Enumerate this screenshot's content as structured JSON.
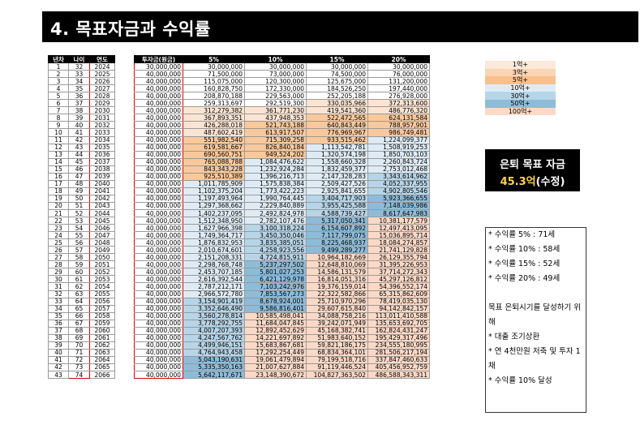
{
  "title": "4. 목표자금과 수익률",
  "headers": {
    "year_n": "년차",
    "age": "나이",
    "year": "연도",
    "invest": "투자금(원금)",
    "r5": "5%",
    "r10": "10%",
    "r15": "15%",
    "r20": "20%"
  },
  "rows": [
    {
      "n": "1",
      "age": "32",
      "year": "2024",
      "inv": "30,000,000",
      "v5": "30,000,000",
      "v10": "30,000,000",
      "v15": "30,000,000",
      "v20": "30,000,000"
    },
    {
      "n": "2",
      "age": "33",
      "year": "2025",
      "inv": "40,000,000",
      "v5": "71,500,000",
      "v10": "73,000,000",
      "v15": "74,500,000",
      "v20": "76,000,000"
    },
    {
      "n": "3",
      "age": "34",
      "year": "2026",
      "inv": "40,000,000",
      "v5": "115,075,000",
      "v10": "120,300,000",
      "v15": "125,675,000",
      "v20": "131,200,000"
    },
    {
      "n": "4",
      "age": "35",
      "year": "2027",
      "inv": "40,000,000",
      "v5": "160,828,750",
      "v10": "172,330,000",
      "v15": "184,526,250",
      "v20": "197,440,000"
    },
    {
      "n": "5",
      "age": "36",
      "year": "2028",
      "inv": "40,000,000",
      "v5": "208,870,188",
      "v10": "229,563,000",
      "v15": "252,205,188",
      "v20": "276,928,000"
    },
    {
      "n": "6",
      "age": "37",
      "year": "2029",
      "inv": "40,000,000",
      "v5": "259,313,697",
      "v10": "292,519,300",
      "v15": "330,035,966",
      "v20": "372,313,600"
    },
    {
      "n": "7",
      "age": "38",
      "year": "2030",
      "inv": "40,000,000",
      "v5": "312,279,382",
      "v10": "361,771,230",
      "v15": "419,541,360",
      "v20": "486,776,320"
    },
    {
      "n": "8",
      "age": "39",
      "year": "2031",
      "inv": "40,000,000",
      "v5": "367,893,351",
      "v10": "437,948,353",
      "v15": "522,472,565",
      "v20": "624,131,584"
    },
    {
      "n": "9",
      "age": "40",
      "year": "2032",
      "inv": "40,000,000",
      "v5": "426,288,018",
      "v10": "521,743,188",
      "v15": "640,843,449",
      "v20": "788,957,901"
    },
    {
      "n": "10",
      "age": "41",
      "year": "2033",
      "inv": "40,000,000",
      "v5": "487,602,419",
      "v10": "613,917,507",
      "v15": "776,969,967",
      "v20": "986,749,481"
    },
    {
      "n": "11",
      "age": "42",
      "year": "2034",
      "inv": "40,000,000",
      "v5": "551,982,540",
      "v10": "715,309,258",
      "v15": "933,515,462",
      "v20": "1,224,099,377"
    },
    {
      "n": "12",
      "age": "43",
      "year": "2035",
      "inv": "40,000,000",
      "v5": "619,581,667",
      "v10": "826,840,184",
      "v15": "1,113,542,781",
      "v20": "1,508,919,253"
    },
    {
      "n": "13",
      "age": "44",
      "year": "2036",
      "inv": "40,000,000",
      "v5": "690,560,751",
      "v10": "949,524,202",
      "v15": "1,320,574,198",
      "v20": "1,850,703,103"
    },
    {
      "n": "14",
      "age": "45",
      "year": "2037",
      "inv": "40,000,000",
      "v5": "765,088,788",
      "v10": "1,084,476,622",
      "v15": "1,558,660,328",
      "v20": "2,260,843,724"
    },
    {
      "n": "15",
      "age": "46",
      "year": "2038",
      "inv": "40,000,000",
      "v5": "843,343,228",
      "v10": "1,232,924,284",
      "v15": "1,832,459,377",
      "v20": "2,753,012,468"
    },
    {
      "n": "16",
      "age": "47",
      "year": "2039",
      "inv": "40,000,000",
      "v5": "925,510,389",
      "v10": "1,396,216,713",
      "v15": "2,147,328,283",
      "v20": "3,343,614,962"
    },
    {
      "n": "17",
      "age": "48",
      "year": "2040",
      "inv": "40,000,000",
      "v5": "1,011,785,909",
      "v10": "1,575,838,384",
      "v15": "2,509,427,526",
      "v20": "4,052,337,955"
    },
    {
      "n": "18",
      "age": "49",
      "year": "2041",
      "inv": "40,000,000",
      "v5": "1,102,375,204",
      "v10": "1,773,422,223",
      "v15": "2,925,841,655",
      "v20": "4,902,805,546"
    },
    {
      "n": "19",
      "age": "50",
      "year": "2042",
      "inv": "40,000,000",
      "v5": "1,197,493,964",
      "v10": "1,990,764,445",
      "v15": "3,404,717,903",
      "v20": "5,923,366,655"
    },
    {
      "n": "20",
      "age": "51",
      "year": "2043",
      "inv": "40,000,000",
      "v5": "1,297,368,662",
      "v10": "2,229,840,889",
      "v15": "3,955,425,588",
      "v20": "7,148,039,986"
    },
    {
      "n": "21",
      "age": "52",
      "year": "2044",
      "inv": "40,000,000",
      "v5": "1,402,237,095",
      "v10": "2,492,824,978",
      "v15": "4,588,739,427",
      "v20": "8,617,647,983"
    },
    {
      "n": "22",
      "age": "53",
      "year": "2045",
      "inv": "40,000,000",
      "v5": "1,512,348,950",
      "v10": "2,782,107,476",
      "v15": "5,317,050,341",
      "v20": "10,381,177,579"
    },
    {
      "n": "23",
      "age": "54",
      "year": "2046",
      "inv": "40,000,000",
      "v5": "1,627,966,398",
      "v10": "3,100,318,224",
      "v15": "6,154,607,892",
      "v20": "12,497,413,095"
    },
    {
      "n": "24",
      "age": "55",
      "year": "2047",
      "inv": "40,000,000",
      "v5": "1,749,364,717",
      "v10": "3,450,350,046",
      "v15": "7,117,799,075",
      "v20": "15,036,895,714"
    },
    {
      "n": "25",
      "age": "56",
      "year": "2048",
      "inv": "40,000,000",
      "v5": "1,876,832,953",
      "v10": "3,835,385,051",
      "v15": "8,225,468,937",
      "v20": "18,084,274,857"
    },
    {
      "n": "26",
      "age": "57",
      "year": "2049",
      "inv": "40,000,000",
      "v5": "2,010,674,601",
      "v10": "4,258,923,556",
      "v15": "9,499,289,277",
      "v20": "21,741,129,828"
    },
    {
      "n": "27",
      "age": "58",
      "year": "2050",
      "inv": "40,000,000",
      "v5": "2,151,208,331",
      "v10": "4,724,815,911",
      "v15": "10,964,182,669",
      "v20": "26,129,355,794"
    },
    {
      "n": "28",
      "age": "59",
      "year": "2051",
      "inv": "40,000,000",
      "v5": "2,298,768,748",
      "v10": "5,237,297,502",
      "v15": "12,648,810,069",
      "v20": "31,395,226,953"
    },
    {
      "n": "29",
      "age": "60",
      "year": "2052",
      "inv": "40,000,000",
      "v5": "2,453,707,185",
      "v10": "5,801,027,253",
      "v15": "14,586,131,579",
      "v20": "37,714,272,343"
    },
    {
      "n": "30",
      "age": "61",
      "year": "2053",
      "inv": "40,000,000",
      "v5": "2,616,392,544",
      "v10": "6,421,129,978",
      "v15": "16,814,051,316",
      "v20": "45,297,126,812"
    },
    {
      "n": "31",
      "age": "62",
      "year": "2054",
      "inv": "40,000,000",
      "v5": "2,787,212,171",
      "v10": "7,103,242,976",
      "v15": "19,376,159,014",
      "v20": "54,396,552,174"
    },
    {
      "n": "32",
      "age": "63",
      "year": "2055",
      "inv": "40,000,000",
      "v5": "2,966,572,780",
      "v10": "7,853,567,273",
      "v15": "22,322,582,866",
      "v20": "65,315,862,609"
    },
    {
      "n": "33",
      "age": "64",
      "year": "2056",
      "inv": "40,000,000",
      "v5": "3,154,901,419",
      "v10": "8,678,924,001",
      "v15": "25,710,970,296",
      "v20": "78,419,035,130"
    },
    {
      "n": "34",
      "age": "65",
      "year": "2057",
      "inv": "40,000,000",
      "v5": "3,352,646,490",
      "v10": "9,586,816,401",
      "v15": "29,607,615,840",
      "v20": "94,142,842,157"
    },
    {
      "n": "35",
      "age": "66",
      "year": "2058",
      "inv": "40,000,000",
      "v5": "3,560,278,814",
      "v10": "10,585,498,041",
      "v15": "34,088,758,216",
      "v20": "113,011,410,588"
    },
    {
      "n": "36",
      "age": "67",
      "year": "2059",
      "inv": "40,000,000",
      "v5": "3,778,292,755",
      "v10": "11,684,047,845",
      "v15": "39,242,071,949",
      "v20": "135,653,692,705"
    },
    {
      "n": "37",
      "age": "68",
      "year": "2060",
      "inv": "40,000,000",
      "v5": "4,007,207,393",
      "v10": "12,892,452,629",
      "v15": "45,168,382,741",
      "v20": "162,824,431,247"
    },
    {
      "n": "38",
      "age": "69",
      "year": "2061",
      "inv": "40,000,000",
      "v5": "4,247,567,762",
      "v10": "14,221,697,892",
      "v15": "51,983,640,152",
      "v20": "195,429,317,496"
    },
    {
      "n": "39",
      "age": "70",
      "year": "2062",
      "inv": "40,000,000",
      "v5": "4,499,946,151",
      "v10": "15,683,867,681",
      "v15": "59,821,186,175",
      "v20": "234,555,180,995"
    },
    {
      "n": "40",
      "age": "71",
      "year": "2063",
      "inv": "40,000,000",
      "v5": "4,764,943,458",
      "v10": "17,292,254,449",
      "v15": "68,834,364,101",
      "v20": "281,506,217,194"
    },
    {
      "n": "41",
      "age": "72",
      "year": "2064",
      "inv": "40,000,000",
      "v5": "5,043,190,631",
      "v10": "19,061,479,894",
      "v15": "79,199,518,716",
      "v20": "337,847,460,633"
    },
    {
      "n": "42",
      "age": "73",
      "year": "2065",
      "inv": "40,000,000",
      "v5": "5,335,350,163",
      "v10": "21,007,627,884",
      "v15": "91,119,446,524",
      "v20": "405,456,952,759"
    },
    {
      "n": "43",
      "age": "74",
      "year": "2066",
      "inv": "40,000,000",
      "v5": "5,642,117,671",
      "v10": "23,148,390,672",
      "v15": "104,827,363,502",
      "v20": "486,588,343,311"
    }
  ],
  "legend": [
    "1억+",
    "3억+",
    "5억+",
    "10억+",
    "30억+",
    "50억+",
    "100억+"
  ],
  "colors": {
    "b1": "#ffffff",
    "b2": "#fce4d2",
    "b3": "#f9c99c",
    "b4": "#deebf5",
    "b5": "#b6d5e8",
    "b6": "#8dbcd9",
    "b7": "#fcd9c6"
  },
  "goal": {
    "label": "은퇴 목표 자금",
    "amount": "45.3억",
    "suffix": "(수정)"
  },
  "notes": [
    "* 수익률 5% : 71세",
    "* 수익률 10% : 58세",
    "* 수익률 15% : 52세",
    "* 수익률 20% : 49세",
    "",
    "목표 은퇴시기를 달성하기 위해",
    "* 대출 조기상환",
    "* 연 4천만원 저축 및 투자 1채",
    "* 수익률 10% 달성"
  ]
}
